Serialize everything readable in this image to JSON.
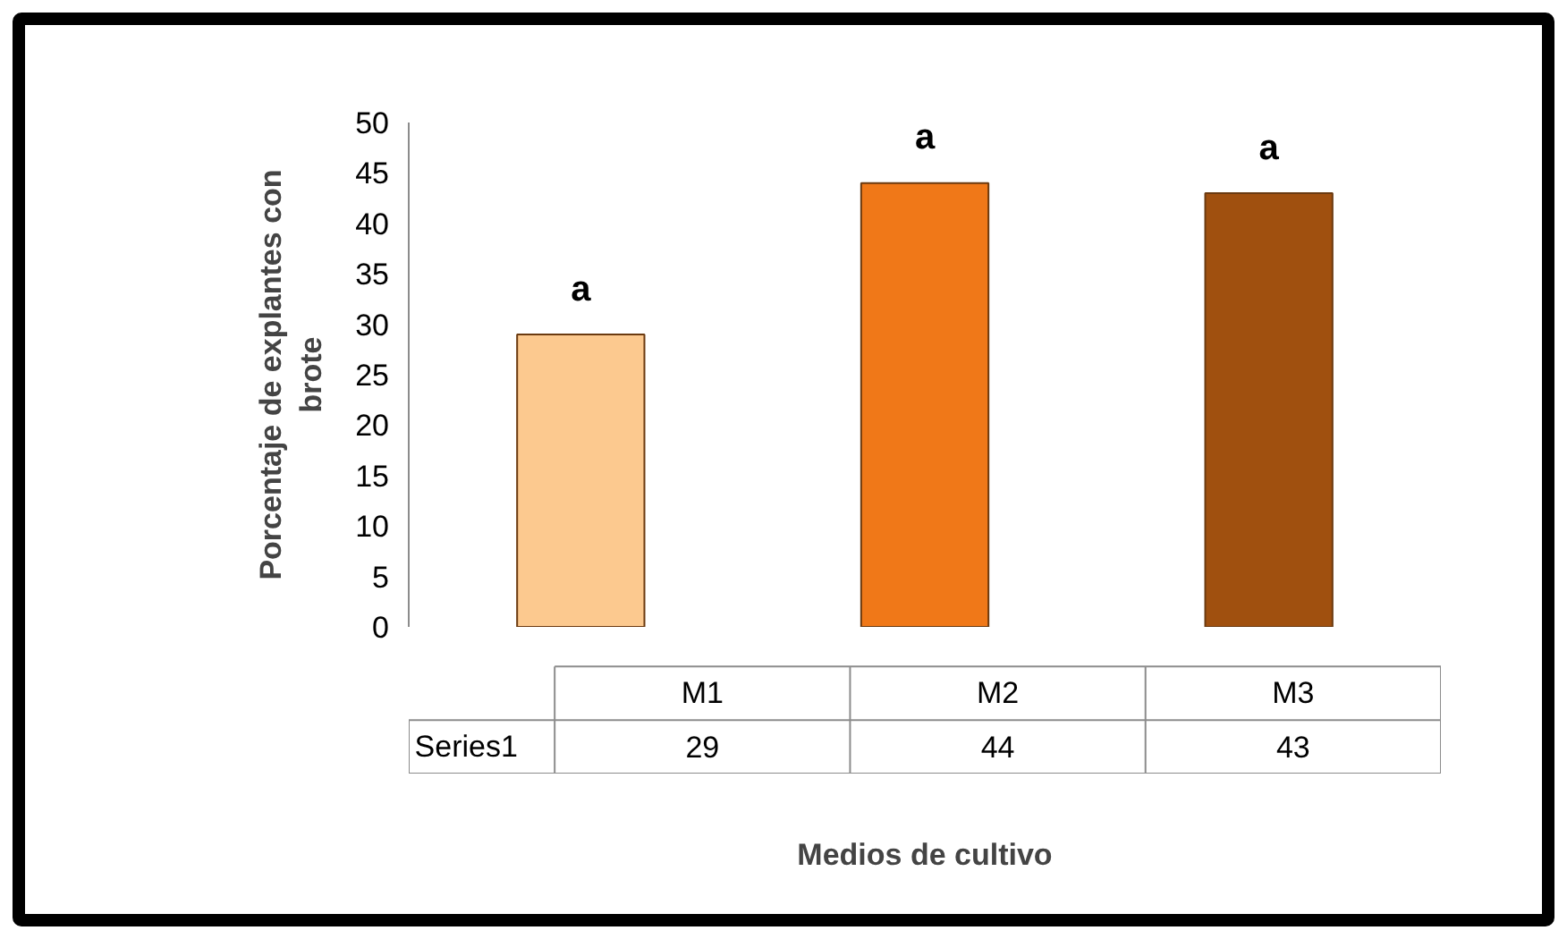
{
  "chart_data": {
    "type": "bar",
    "xlabel": "Medios de cultivo",
    "ylabel": "Porcentaje de explantes con brote",
    "categories": [
      "M1",
      "M2",
      "M3"
    ],
    "series": [
      {
        "name": "Series1",
        "values": [
          29,
          44,
          43
        ],
        "colors": [
          "#fcc98f",
          "#f07818",
          "#a0500f"
        ]
      }
    ],
    "ylim": [
      0,
      50
    ],
    "yticks": [
      0,
      5,
      10,
      15,
      20,
      25,
      30,
      35,
      40,
      45,
      50
    ],
    "data_labels": true,
    "grid": false,
    "legend": false,
    "annotations": [
      "a",
      "a",
      "a"
    ]
  }
}
